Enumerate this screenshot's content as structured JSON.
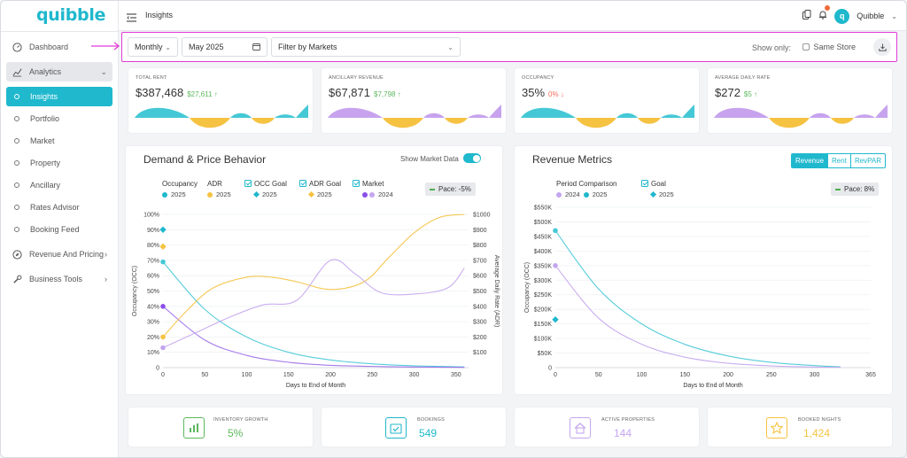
{
  "app": {
    "logo": "quibble",
    "page_title": "Insights",
    "username": "Quibble",
    "avatar_letter": "q"
  },
  "sidebar": {
    "dashboard": "Dashboard",
    "analytics": "Analytics",
    "items": [
      "Insights",
      "Portfolio",
      "Market",
      "Property",
      "Ancillary",
      "Rates Advisor",
      "Booking Feed"
    ],
    "revenue_pricing": "Revenue And Pricing",
    "business_tools": "Business Tools"
  },
  "filters": {
    "period": "Monthly",
    "date": "May 2025",
    "markets_placeholder": "Filter by Markets",
    "show_only": "Show only:",
    "same_store": "Same Store"
  },
  "kpis": [
    {
      "label": "Total Rent",
      "value": "$387,468",
      "delta": "$27,611 ↑",
      "delta_color": "#5cb85c",
      "wave_color": "#45c8d6"
    },
    {
      "label": "Ancillary Revenue",
      "value": "$67,871",
      "delta": "$7,798 ↑",
      "delta_color": "#5cb85c",
      "wave_color": "#c7a3ee"
    },
    {
      "label": "Occupancy",
      "value": "35%",
      "delta": "0% ↓",
      "delta_color": "#f26b5b",
      "wave_color": "#45c8d6"
    },
    {
      "label": "Average Daily Rate",
      "value": "$272",
      "delta": "$5 ↑",
      "delta_color": "#5cb85c",
      "wave_color": "#c7a3ee"
    }
  ],
  "demand_chart": {
    "title": "Demand & Price Behavior",
    "show_market": "Show Market Data",
    "legend": [
      {
        "name": "Occupancy",
        "sub": "2025"
      },
      {
        "name": "ADR",
        "sub": "2025"
      },
      {
        "name": "OCC Goal",
        "sub": "2025"
      },
      {
        "name": "ADR Goal",
        "sub": "2025"
      },
      {
        "name": "Market",
        "sub": "2024"
      }
    ],
    "pace": "Pace: -5%"
  },
  "revenue_chart": {
    "title": "Revenue Metrics",
    "tabs": [
      "Revenue",
      "Rent",
      "RevPAR"
    ],
    "legend": [
      {
        "name": "Period Comparison",
        "sub1": "2024",
        "sub2": "2025"
      },
      {
        "name": "Goal",
        "sub": "2025"
      }
    ],
    "pace": "Pace: 8%"
  },
  "chart_data": [
    {
      "type": "line",
      "xlabel": "Days to End of Month",
      "ylabel": "Occupancy (OCC)",
      "y2label": "Average Daily Rate (ADR)",
      "xlim": [
        0,
        365
      ],
      "xticks": [
        0,
        50,
        100,
        150,
        200,
        250,
        300,
        350
      ],
      "ylim": [
        0,
        100
      ],
      "yticks": [
        "0",
        "10%",
        "20%",
        "30%",
        "40%",
        "50%",
        "60%",
        "70%",
        "80%",
        "90%",
        "100%"
      ],
      "y2lim": [
        0,
        1000
      ],
      "y2ticks": [
        "$100",
        "$200",
        "$300",
        "$400",
        "$500",
        "$600",
        "$700",
        "$800",
        "$900",
        "$1000"
      ],
      "series": [
        {
          "name": "Occupancy 2025",
          "axis": "left",
          "color": "#45c8d6",
          "x": [
            0,
            50,
            100,
            150,
            200,
            250,
            300,
            360
          ],
          "y": [
            69,
            38,
            20,
            10,
            5,
            2.5,
            1.2,
            0.5
          ]
        },
        {
          "name": "Market 2024",
          "axis": "left",
          "color": "#9b6bea",
          "x": [
            0,
            50,
            100,
            150,
            200,
            250,
            300,
            360
          ],
          "y": [
            40,
            18,
            8,
            3.5,
            1.5,
            0.8,
            0.4,
            0.2
          ]
        },
        {
          "name": "ADR 2025",
          "axis": "right",
          "color": "#f5c242",
          "x": [
            0,
            30,
            60,
            100,
            130,
            160,
            200,
            240,
            270,
            300,
            330,
            360
          ],
          "y": [
            200,
            380,
            520,
            590,
            590,
            560,
            510,
            560,
            720,
            880,
            980,
            1000
          ]
        },
        {
          "name": "Market ADR 2024",
          "axis": "right",
          "color": "#c4a5ee",
          "x": [
            0,
            40,
            80,
            120,
            160,
            200,
            230,
            260,
            300,
            340,
            360
          ],
          "y": [
            130,
            230,
            330,
            410,
            440,
            700,
            610,
            490,
            480,
            520,
            650
          ]
        }
      ],
      "markers": [
        {
          "name": "OCC Goal",
          "shape": "diamond",
          "color": "#1fb8cd",
          "axis": "left",
          "x": 0,
          "y": 90
        },
        {
          "name": "ADR Goal",
          "shape": "diamond",
          "color": "#f5c242",
          "axis": "left",
          "x": 0,
          "y": 79
        },
        {
          "name": "Occupancy",
          "shape": "dot",
          "color": "#45c8d6",
          "axis": "left",
          "x": 0,
          "y": 69
        },
        {
          "name": "Market",
          "shape": "dot",
          "color": "#8a4fe8",
          "axis": "left",
          "x": 0,
          "y": 40
        },
        {
          "name": "ADR",
          "shape": "dot",
          "color": "#f5c242",
          "axis": "left",
          "x": 0,
          "y": 20
        },
        {
          "name": "Market ADR",
          "shape": "dot",
          "color": "#c4a5ee",
          "axis": "left",
          "x": 0,
          "y": 13
        }
      ]
    },
    {
      "type": "line",
      "xlabel": "Days to End of Month",
      "ylabel": "Occupancy (OCC)",
      "xlim": [
        0,
        365
      ],
      "xticks": [
        0,
        50,
        100,
        150,
        200,
        250,
        300,
        365
      ],
      "ylim": [
        0,
        550
      ],
      "yticks": [
        "0",
        "$50K",
        "$100K",
        "$150K",
        "$200K",
        "$250K",
        "$300K",
        "$350K",
        "$400K",
        "$450K",
        "$500K",
        "$550K"
      ],
      "series": [
        {
          "name": "2025",
          "color": "#45c8d6",
          "x": [
            0,
            50,
            100,
            150,
            200,
            250,
            300,
            330
          ],
          "y": [
            470,
            270,
            150,
            80,
            40,
            18,
            7,
            3
          ]
        },
        {
          "name": "2024",
          "color": "#c4a5ee",
          "x": [
            0,
            50,
            100,
            150,
            200,
            250,
            300,
            330
          ],
          "y": [
            350,
            170,
            80,
            36,
            15,
            6,
            2,
            1
          ]
        }
      ],
      "markers": [
        {
          "name": "2025",
          "shape": "dot",
          "color": "#45c8d6",
          "x": 0,
          "y": 470
        },
        {
          "name": "2024",
          "shape": "dot",
          "color": "#c4a5ee",
          "x": 0,
          "y": 350
        },
        {
          "name": "Goal 2025",
          "shape": "diamond",
          "color": "#1fb8cd",
          "x": 0,
          "y": 165
        }
      ]
    }
  ],
  "bottom_kpis": [
    {
      "label": "Inventory Growth",
      "value": "5%",
      "color": "#5cb85c",
      "icon": "bar-chart-icon"
    },
    {
      "label": "Bookings",
      "value": "549",
      "color": "#1fb8cd",
      "icon": "calendar-check-icon"
    },
    {
      "label": "Active Properties",
      "value": "144",
      "color": "#c4a5ee",
      "icon": "house-icon"
    },
    {
      "label": "Booked Nights",
      "value": "1,424",
      "color": "#f5c242",
      "icon": "star-icon"
    }
  ]
}
